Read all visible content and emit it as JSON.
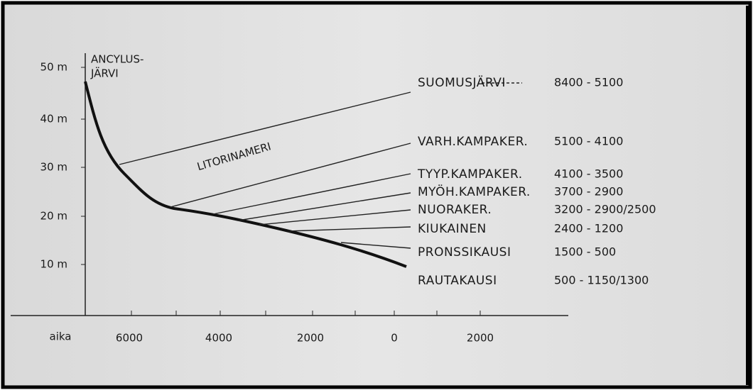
{
  "diagram": {
    "y_axis": {
      "labels": [
        "50 m",
        "40 m",
        "30 m",
        "20 m",
        "10 m"
      ]
    },
    "x_axis": {
      "label": "aika",
      "labels": [
        "6000",
        "4000",
        "2000",
        "0",
        "2000"
      ]
    },
    "lake_label": [
      "ANCYLUS-",
      "JÄRVI"
    ],
    "sea_label": "LITORINAMERI",
    "periods": [
      {
        "name": "SUOMUSJÄRVI",
        "dates": "8400 - 5100"
      },
      {
        "name": "VARH.KAMPAKER.",
        "dates": "5100 - 4100"
      },
      {
        "name": "TYYP.KAMPAKER.",
        "dates": "4100 - 3500"
      },
      {
        "name": "MYÖH.KAMPAKER.",
        "dates": "3700 - 2900"
      },
      {
        "name": "NUORAKER.",
        "dates": "3200 - 2900/2500"
      },
      {
        "name": "KIUKAINEN",
        "dates": "2400 - 1200"
      },
      {
        "name": "PRONSSIKAUSI",
        "dates": "1500 - 500"
      },
      {
        "name": "RAUTAKAUSI",
        "dates": "500 - 1150/1300"
      }
    ]
  }
}
